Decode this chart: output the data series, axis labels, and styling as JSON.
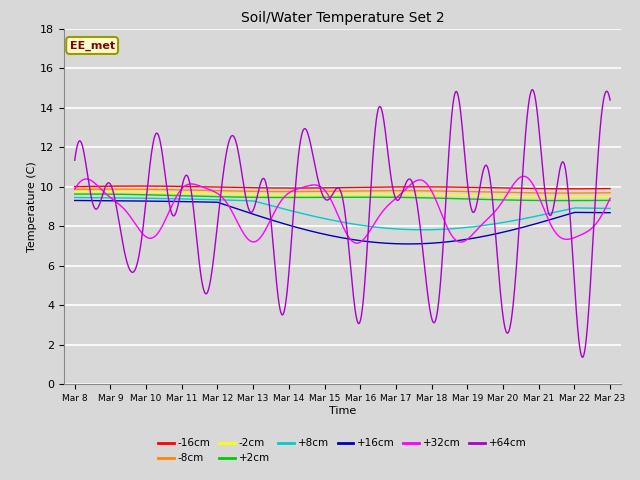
{
  "title": "Soil/Water Temperature Set 2",
  "xlabel": "Time",
  "ylabel": "Temperature (C)",
  "ylim": [
    0,
    18
  ],
  "y_ticks": [
    0,
    2,
    4,
    6,
    8,
    10,
    12,
    14,
    16,
    18
  ],
  "x_ticks": [
    0,
    1,
    2,
    3,
    4,
    5,
    6,
    7,
    8,
    9,
    10,
    11,
    12,
    13,
    14,
    15
  ],
  "x_tick_labels": [
    "Mar 8",
    "Mar 9",
    "Mar 10",
    "Mar 11",
    "Mar 12",
    "Mar 13",
    "Mar 14",
    "Mar 15",
    "Mar 16",
    "Mar 17",
    "Mar 18",
    "Mar 19",
    "Mar 20",
    "Mar 21",
    "Mar 22",
    "Mar 23"
  ],
  "background_color": "#d8d8d8",
  "plot_bg_color": "#d8d8d8",
  "grid_color": "#ffffff",
  "series": [
    {
      "label": "-16cm",
      "color": "#ff0000"
    },
    {
      "label": "-8cm",
      "color": "#ff8800"
    },
    {
      "label": "-2cm",
      "color": "#ffff00"
    },
    {
      "label": "+2cm",
      "color": "#00cc00"
    },
    {
      "label": "+8cm",
      "color": "#00cccc"
    },
    {
      "label": "+16cm",
      "color": "#0000bb"
    },
    {
      "label": "+32cm",
      "color": "#ff00ff"
    },
    {
      "label": "+64cm",
      "color": "#aa00cc"
    }
  ],
  "annotation_text": "EE_met",
  "figsize": [
    6.4,
    4.8
  ],
  "dpi": 100
}
